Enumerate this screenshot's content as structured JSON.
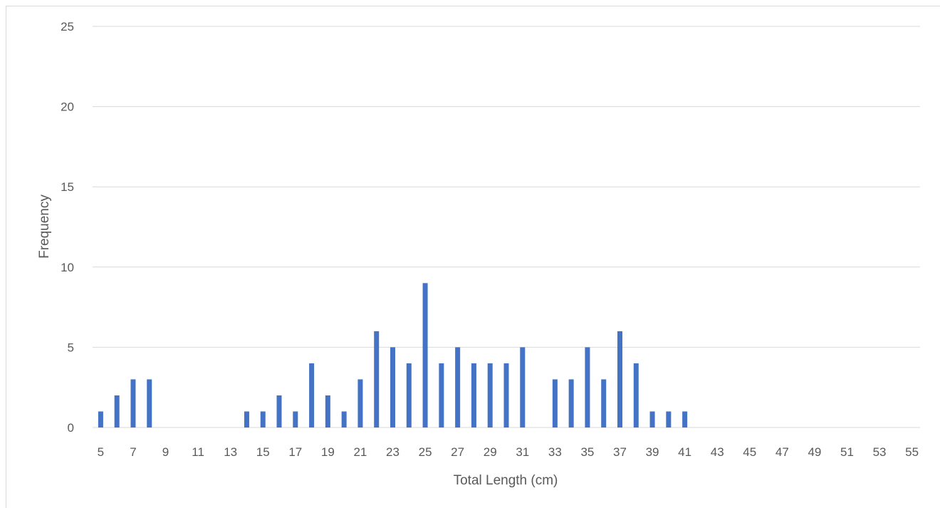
{
  "chart_data": {
    "type": "bar",
    "xlabel": "Total Length (cm)",
    "ylabel": "Frequency",
    "ylim": [
      0,
      25
    ],
    "yticks": [
      0,
      5,
      10,
      15,
      20,
      25
    ],
    "grid": true,
    "bar_color": "#4472C4",
    "x_tick_labels": [
      "5",
      "7",
      "9",
      "11",
      "13",
      "15",
      "17",
      "19",
      "21",
      "23",
      "25",
      "27",
      "29",
      "31",
      "33",
      "35",
      "37",
      "39",
      "41",
      "43",
      "45",
      "47",
      "49",
      "51",
      "53",
      "55"
    ],
    "categories": [
      5,
      6,
      7,
      8,
      9,
      10,
      11,
      12,
      13,
      14,
      15,
      16,
      17,
      18,
      19,
      20,
      21,
      22,
      23,
      24,
      25,
      26,
      27,
      28,
      29,
      30,
      31,
      32,
      33,
      34,
      35,
      36,
      37,
      38,
      39,
      40,
      41,
      42,
      43,
      44,
      45,
      46,
      47,
      48,
      49,
      50,
      51,
      52,
      53,
      54,
      55
    ],
    "values": [
      1,
      2,
      3,
      3,
      0,
      0,
      0,
      0,
      0,
      1,
      1,
      2,
      1,
      4,
      2,
      1,
      3,
      6,
      5,
      4,
      9,
      4,
      5,
      4,
      4,
      4,
      5,
      0,
      3,
      3,
      5,
      3,
      6,
      4,
      1,
      1,
      1,
      0,
      0,
      0,
      0,
      0,
      0,
      0,
      0,
      0,
      0,
      0,
      0,
      0,
      0
    ]
  }
}
